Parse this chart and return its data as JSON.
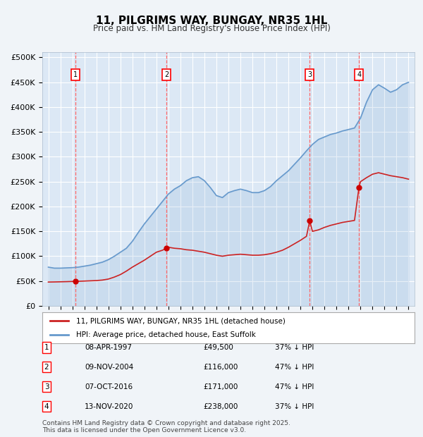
{
  "title": "11, PILGRIMS WAY, BUNGAY, NR35 1HL",
  "subtitle": "Price paid vs. HM Land Registry's House Price Index (HPI)",
  "ylabel_ticks": [
    "£0",
    "£50K",
    "£100K",
    "£150K",
    "£200K",
    "£250K",
    "£300K",
    "£350K",
    "£400K",
    "£450K",
    "£500K"
  ],
  "ytick_values": [
    0,
    50000,
    100000,
    150000,
    200000,
    250000,
    300000,
    350000,
    400000,
    450000,
    500000
  ],
  "xlim": [
    1994.5,
    2025.5
  ],
  "ylim": [
    0,
    510000
  ],
  "background_color": "#e8f0f8",
  "plot_bg_color": "#dce8f5",
  "grid_color": "#ffffff",
  "legend_line1": "11, PILGRIMS WAY, BUNGAY, NR35 1HL (detached house)",
  "legend_line2": "HPI: Average price, detached house, East Suffolk",
  "footer": "Contains HM Land Registry data © Crown copyright and database right 2025.\nThis data is licensed under the Open Government Licence v3.0.",
  "transactions": [
    {
      "num": 1,
      "date": "08-APR-1997",
      "price": 49500,
      "pct": "37% ↓ HPI",
      "year": 1997.27
    },
    {
      "num": 2,
      "date": "09-NOV-2004",
      "price": 116000,
      "pct": "47% ↓ HPI",
      "year": 2004.86
    },
    {
      "num": 3,
      "date": "07-OCT-2016",
      "price": 171000,
      "pct": "47% ↓ HPI",
      "year": 2016.77
    },
    {
      "num": 4,
      "date": "13-NOV-2020",
      "price": 238000,
      "pct": "37% ↓ HPI",
      "year": 2020.87
    }
  ],
  "hpi_x": [
    1995,
    1995.5,
    1996,
    1996.5,
    1997,
    1997.5,
    1998,
    1998.5,
    1999,
    1999.5,
    2000,
    2000.5,
    2001,
    2001.5,
    2002,
    2002.5,
    2003,
    2003.5,
    2004,
    2004.5,
    2005,
    2005.5,
    2006,
    2006.5,
    2007,
    2007.5,
    2008,
    2008.5,
    2009,
    2009.5,
    2010,
    2010.5,
    2011,
    2011.5,
    2012,
    2012.5,
    2013,
    2013.5,
    2014,
    2014.5,
    2015,
    2015.5,
    2016,
    2016.5,
    2017,
    2017.5,
    2018,
    2018.5,
    2019,
    2019.5,
    2020,
    2020.5,
    2021,
    2021.5,
    2022,
    2022.5,
    2023,
    2023.5,
    2024,
    2024.5,
    2025
  ],
  "hpi_y": [
    78000,
    76000,
    76000,
    76500,
    77000,
    78000,
    80000,
    82000,
    85000,
    88000,
    93000,
    100000,
    108000,
    116000,
    130000,
    148000,
    165000,
    180000,
    195000,
    210000,
    225000,
    235000,
    242000,
    252000,
    258000,
    260000,
    252000,
    238000,
    222000,
    218000,
    228000,
    232000,
    235000,
    232000,
    228000,
    228000,
    232000,
    240000,
    252000,
    262000,
    272000,
    285000,
    298000,
    312000,
    325000,
    335000,
    340000,
    345000,
    348000,
    352000,
    355000,
    358000,
    378000,
    410000,
    435000,
    445000,
    438000,
    430000,
    435000,
    445000,
    450000
  ],
  "price_x": [
    1995,
    1995.5,
    1996,
    1996.5,
    1997,
    1997.27,
    1997.5,
    1998,
    1998.5,
    1999,
    1999.5,
    2000,
    2000.5,
    2001,
    2001.5,
    2002,
    2002.5,
    2003,
    2003.5,
    2004,
    2004.5,
    2004.86,
    2005,
    2005.5,
    2006,
    2006.5,
    2007,
    2007.5,
    2008,
    2008.5,
    2009,
    2009.5,
    2010,
    2010.5,
    2011,
    2011.5,
    2012,
    2012.5,
    2013,
    2013.5,
    2014,
    2014.5,
    2015,
    2015.5,
    2016,
    2016.5,
    2016.77,
    2017,
    2017.5,
    2018,
    2018.5,
    2019,
    2019.5,
    2020,
    2020.5,
    2020.87,
    2021,
    2021.5,
    2022,
    2022.5,
    2023,
    2023.5,
    2024,
    2024.5,
    2025
  ],
  "price_y": [
    48000,
    48200,
    48500,
    48800,
    49200,
    49500,
    49500,
    50000,
    50500,
    51000,
    52000,
    54000,
    58000,
    63000,
    70000,
    78000,
    85000,
    92000,
    100000,
    108000,
    112000,
    116000,
    118000,
    116000,
    115000,
    113000,
    112000,
    110000,
    108000,
    105000,
    102000,
    100000,
    102000,
    103000,
    104000,
    103000,
    102000,
    102000,
    103000,
    105000,
    108000,
    112000,
    118000,
    125000,
    132000,
    140000,
    171000,
    150000,
    153000,
    158000,
    162000,
    165000,
    168000,
    170000,
    172000,
    238000,
    250000,
    258000,
    265000,
    268000,
    265000,
    262000,
    260000,
    258000,
    255000
  ],
  "hpi_color": "#6699cc",
  "price_color": "#cc2222",
  "transaction_color": "#cc0000",
  "dashed_color": "#ff6666"
}
